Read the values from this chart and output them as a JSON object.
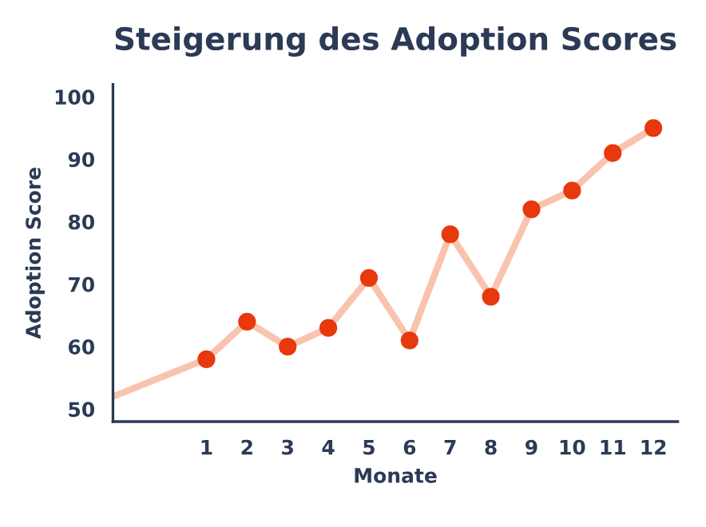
{
  "chart_data": {
    "type": "line",
    "title": "Steigerung des Adoption Scores",
    "xlabel": "Monate",
    "ylabel": "Adoption Score",
    "xlim": [
      -1.3,
      12.6
    ],
    "xticks": [
      1,
      2,
      3,
      4,
      5,
      6,
      7,
      8,
      9,
      10,
      11,
      12
    ],
    "ylim": [
      48,
      102
    ],
    "yticks": [
      50,
      60,
      70,
      80,
      90,
      100
    ],
    "series": [
      {
        "marker": "none",
        "color": "#f9c3ad",
        "x": [
          -1.3,
          1,
          2,
          3,
          4,
          5,
          6,
          7,
          8,
          9,
          10,
          11,
          12
        ],
        "values": [
          52,
          58,
          64,
          60,
          63,
          71,
          61,
          78,
          68,
          82,
          85,
          91,
          95
        ]
      },
      {
        "type": "scatter",
        "color": "#e8380d",
        "x": [
          1,
          2,
          3,
          4,
          5,
          6,
          7,
          8,
          9,
          10,
          11,
          12
        ],
        "values": [
          58,
          64,
          60,
          63,
          71,
          61,
          78,
          68,
          82,
          85,
          91,
          95
        ]
      }
    ],
    "marker": "circle",
    "grid": false,
    "legend": false
  }
}
